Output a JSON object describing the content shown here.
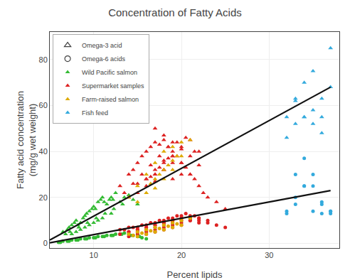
{
  "chart_data": {
    "type": "scatter",
    "title": "Concentration of Fatty Acids",
    "x_label": "Percent lipids",
    "y_label": "Fatty acid concentration\n(mg/g wet weight)",
    "xlim": [
      5,
      38
    ],
    "ylim": [
      -2,
      92
    ],
    "xticks": [
      10,
      20,
      30
    ],
    "yticks": [
      0,
      20,
      40,
      60,
      80
    ],
    "grid": true,
    "legend": "upper left",
    "markers": [
      {
        "name": "Omega-3 acid",
        "marker": "triangle",
        "color": "#444444"
      },
      {
        "name": "Omega-6 acids",
        "marker": "circle",
        "color": "#444444"
      }
    ],
    "series": [
      {
        "name": "Wild Pacific salmon",
        "color": "#33bb33",
        "marker": "triangle",
        "x": [
          6.5,
          7.0,
          7.2,
          7.5,
          7.8,
          8.0,
          8.2,
          8.5,
          8.8,
          9.0,
          9.2,
          9.5,
          9.8,
          10.0,
          10.2,
          10.5,
          10.8,
          11.0,
          11.2,
          11.5,
          11.8,
          12.0,
          12.2,
          12.5,
          13.0,
          13.5,
          14.0,
          14.5,
          15.0,
          7.5,
          8.0,
          8.5,
          9.0,
          9.5,
          10.0,
          10.5,
          11.0,
          12.0,
          6.8,
          7.3,
          8.3,
          9.3,
          10.3,
          11.3,
          12.3,
          13.3
        ],
        "values": [
          5,
          6,
          7,
          8,
          9,
          10,
          8,
          9,
          11,
          12,
          13,
          14,
          15,
          16,
          15,
          18,
          19,
          20,
          18,
          17,
          19,
          20,
          19,
          22,
          18,
          20,
          21,
          19,
          17,
          4,
          5,
          6,
          7,
          8,
          9,
          10,
          11,
          13,
          4,
          5,
          7,
          9,
          11,
          13,
          15,
          17
        ]
      },
      {
        "name": "Wild Pacific salmon",
        "color": "#33bb33",
        "marker": "circle",
        "x": [
          6.0,
          6.5,
          7.0,
          7.5,
          8.0,
          8.5,
          9.0,
          9.5,
          10.0,
          10.5,
          11.0,
          11.5,
          12.0,
          12.5,
          13.0,
          13.5,
          14.0,
          14.5,
          15.0,
          15.5,
          16.0,
          6.2,
          7.2,
          8.2,
          9.2,
          10.2,
          11.2,
          12.2,
          13.2,
          14.2,
          15.2
        ],
        "values": [
          0.5,
          1.0,
          1.0,
          1.5,
          1.5,
          2.0,
          2.0,
          2.5,
          2.5,
          3.0,
          3.0,
          3.5,
          3.5,
          4.0,
          4.0,
          4.5,
          4.0,
          3.5,
          3.0,
          2.5,
          2.0,
          0.5,
          1.0,
          1.5,
          2.0,
          2.5,
          3.0,
          3.5,
          4.0,
          3.5,
          3.0
        ]
      },
      {
        "name": "Supermarket samples",
        "color": "#dd2222",
        "marker": "triangle",
        "x": [
          13,
          14,
          14.5,
          15,
          15.5,
          16,
          16.5,
          17,
          17.5,
          18,
          18.5,
          19,
          19.5,
          20,
          20.5,
          21,
          21.5,
          22,
          22.5,
          23,
          24,
          25,
          14,
          15,
          16,
          17,
          18,
          19,
          20,
          21,
          22,
          16,
          17,
          18,
          19,
          20,
          21,
          17,
          18,
          19,
          20,
          15,
          16,
          17,
          18,
          19,
          13.5,
          14.5,
          15.5,
          16.5,
          17.5,
          18.5,
          19.5,
          20.5,
          21.5,
          17,
          18,
          19,
          20,
          21,
          22,
          16.5,
          17.5,
          18.5
        ],
        "values": [
          25,
          30,
          32,
          35,
          38,
          40,
          42,
          44,
          43,
          45,
          42,
          40,
          38,
          35,
          33,
          30,
          28,
          25,
          22,
          20,
          18,
          15,
          20,
          22,
          25,
          30,
          35,
          38,
          42,
          45,
          40,
          28,
          32,
          36,
          38,
          35,
          30,
          27,
          32,
          35,
          30,
          26,
          28,
          30,
          32,
          28,
          22,
          26,
          30,
          34,
          38,
          42,
          44,
          46,
          40,
          50,
          47,
          44,
          41,
          38,
          34,
          29,
          33,
          37
        ]
      },
      {
        "name": "Supermarket samples",
        "color": "#dd2222",
        "marker": "circle",
        "x": [
          13,
          14,
          15,
          16,
          17,
          18,
          19,
          20,
          21,
          22,
          23,
          24,
          25,
          14,
          15,
          16,
          17,
          18,
          19,
          20,
          21,
          22,
          15,
          16,
          17,
          18,
          19,
          20,
          21,
          16,
          17,
          18,
          19,
          20,
          13.5,
          14.5,
          15.5,
          16.5,
          17.5,
          18.5,
          19.5,
          20.5,
          21.5,
          14,
          15,
          16,
          17,
          18,
          19,
          20,
          21,
          22,
          23,
          13,
          14,
          15,
          16,
          17,
          18,
          19,
          20,
          21,
          22
        ],
        "values": [
          6,
          7,
          7,
          8,
          9,
          10,
          11,
          12,
          11,
          10,
          9,
          8,
          7,
          5,
          6,
          7,
          8,
          9,
          10,
          11,
          12,
          11,
          5,
          6,
          7,
          8,
          9,
          10,
          11,
          4,
          5,
          6,
          7,
          8,
          6,
          7,
          8,
          9,
          10,
          11,
          12,
          13,
          12,
          3,
          4,
          5,
          6,
          7,
          8,
          9,
          10,
          11,
          10,
          4,
          5,
          6,
          7,
          8,
          9,
          10,
          11,
          10,
          9
        ]
      },
      {
        "name": "Farm-raised salmon",
        "color": "#ddaa00",
        "marker": "triangle",
        "x": [
          14,
          15,
          16,
          17,
          18,
          19,
          20,
          21,
          15,
          16,
          17,
          18,
          19,
          20,
          17,
          18,
          19,
          16.5,
          17.5,
          18.5,
          19.5
        ],
        "values": [
          20,
          25,
          30,
          35,
          40,
          42,
          44,
          45,
          18,
          22,
          28,
          32,
          36,
          38,
          24,
          28,
          32,
          26,
          30,
          34,
          38
        ]
      },
      {
        "name": "Farm-raised salmon",
        "color": "#ddaa00",
        "marker": "circle",
        "x": [
          14,
          15,
          16,
          17,
          18,
          19,
          20,
          21,
          15,
          16,
          17,
          18,
          19,
          20,
          14.5,
          15.5,
          16.5,
          17.5,
          18.5,
          19.5
        ],
        "values": [
          4,
          5,
          6,
          7,
          8,
          9,
          10,
          11,
          3,
          4,
          5,
          6,
          7,
          8,
          3.5,
          4.5,
          5.5,
          6.5,
          7.5,
          8.5
        ]
      },
      {
        "name": "Fish feed",
        "color": "#33aadd",
        "marker": "triangle",
        "x": [
          32,
          33,
          34,
          35,
          36,
          37,
          33,
          34,
          35,
          36,
          32,
          33,
          34,
          35,
          36,
          37
        ],
        "values": [
          55,
          62,
          70,
          75,
          55,
          85,
          63,
          55,
          52,
          48,
          46,
          52,
          55,
          58,
          63,
          68
        ]
      },
      {
        "name": "Fish feed",
        "color": "#33aadd",
        "marker": "circle",
        "x": [
          32,
          33,
          34,
          35,
          36,
          37,
          33,
          34,
          35,
          36,
          37,
          32,
          33,
          34,
          35,
          36,
          37
        ],
        "values": [
          13,
          17,
          25,
          14,
          13,
          14,
          30,
          37,
          25,
          17,
          13,
          14,
          20,
          25,
          30,
          18,
          14
        ]
      },
      {
        "type": "line",
        "color": "#111111",
        "x": [
          5,
          37
        ],
        "values": [
          1.5,
          68
        ]
      },
      {
        "type": "line",
        "color": "#111111",
        "x": [
          5,
          37
        ],
        "values": [
          0.3,
          23
        ]
      }
    ]
  }
}
